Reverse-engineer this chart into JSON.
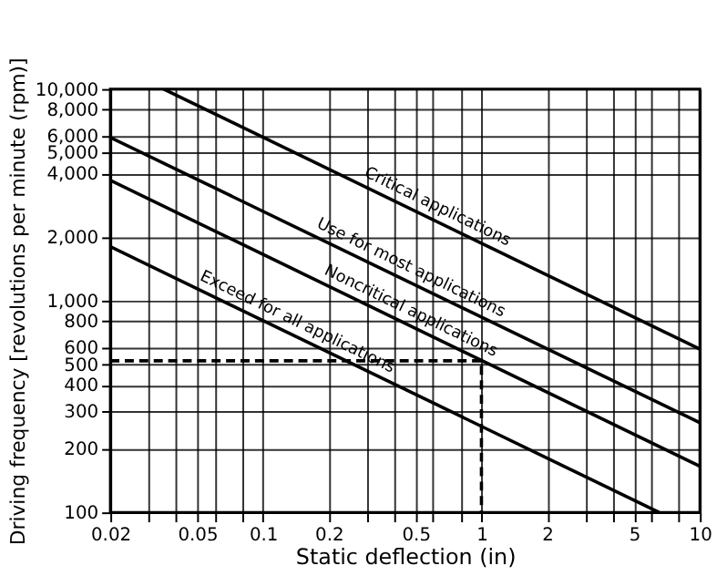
{
  "chart_data": {
    "type": "line",
    "xlabel": "Static deflection (in)",
    "ylabel": "Driving frequency [revolutions per minute (rpm)]",
    "log": "xy",
    "xlim": [
      0.02,
      10
    ],
    "ylim": [
      100,
      10000
    ],
    "xticks": [
      0.02,
      {
        "value": 0.03,
        "label": null
      },
      {
        "value": 0.04,
        "label": null
      },
      0.05,
      {
        "value": 0.06,
        "label": null
      },
      {
        "value": 0.08,
        "label": null
      },
      0.1,
      0.2,
      {
        "value": 0.3,
        "label": null
      },
      {
        "value": 0.4,
        "label": null
      },
      0.5,
      {
        "value": 0.6,
        "label": null
      },
      {
        "value": 0.8,
        "label": null
      },
      1,
      2,
      {
        "value": 3,
        "label": null
      },
      {
        "value": 4,
        "label": null
      },
      5,
      {
        "value": 6,
        "label": null
      },
      {
        "value": 8,
        "label": null
      },
      10
    ],
    "yticks": [
      100,
      200,
      300,
      400,
      500,
      600,
      800,
      {
        "value": 1000,
        "label": "1,000"
      },
      {
        "value": 2000,
        "label": "2,000"
      },
      {
        "value": 4000,
        "label": "4,000"
      },
      {
        "value": 5000,
        "label": "5,000"
      },
      {
        "value": 6000,
        "label": "6,000"
      },
      {
        "value": 8000,
        "label": "8,000"
      },
      {
        "value": 10000,
        "label": "10,000"
      }
    ],
    "grid": true,
    "marker": "none",
    "series": [
      {
        "name": "Critical applications",
        "color": "#000000",
        "x": [
          0.035,
          10
        ],
        "values": [
          10000,
          590
        ]
      },
      {
        "name": "Use for most applications",
        "color": "#000000",
        "x": [
          0.02,
          10
        ],
        "values": [
          5900,
          265
        ]
      },
      {
        "name": "Noncritical applications",
        "color": "#000000",
        "x": [
          0.02,
          10
        ],
        "values": [
          3700,
          165
        ]
      },
      {
        "name": "Exceed for all applications",
        "color": "#000000",
        "x": [
          0.02,
          6.5
        ],
        "values": [
          1800,
          100
        ]
      },
      {
        "color": "#000000",
        "line_style": "dashed",
        "x": [
          0.02,
          1,
          1
        ],
        "values": [
          520,
          520,
          100
        ]
      }
    ]
  }
}
